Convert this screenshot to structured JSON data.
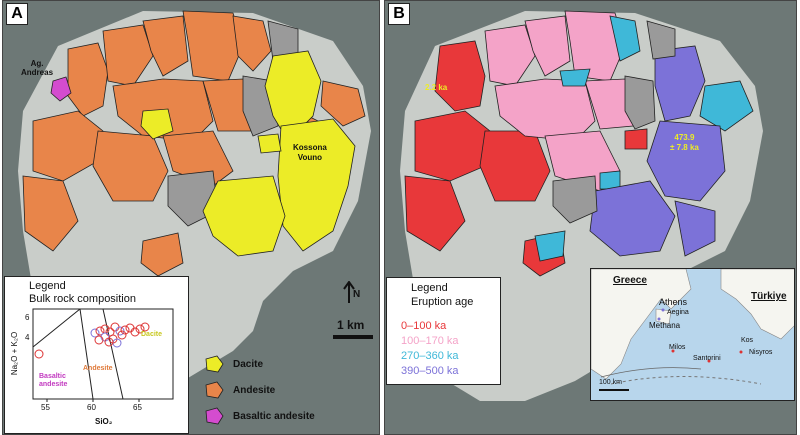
{
  "panel_a": {
    "letter": "A",
    "label_ag": "Ag.\nAndreas",
    "label_kossona": "Kossona\nVouno",
    "north_label": "N",
    "scale_label": "1 km",
    "legend": {
      "title": "Legend",
      "subtitle": "Bulk rock composition",
      "ylabel": "Na₂O + K₂O",
      "xlabel": "SiO₂",
      "xticks": [
        "55",
        "60",
        "65"
      ],
      "yticks": [
        "4",
        "6"
      ],
      "field_basaltic": "Basaltic\nandesite",
      "field_andesite": "Andesite",
      "field_dacite": "Dacite"
    },
    "key": [
      {
        "label": "Dacite",
        "color": "#ecec27"
      },
      {
        "label": "Andesite",
        "color": "#e8854a"
      },
      {
        "label": "Basaltic andesite",
        "color": "#d44ccf"
      }
    ]
  },
  "panel_b": {
    "letter": "B",
    "label_young": "2.2 ka",
    "label_old": "473.9\n± 7.8 ka",
    "legend": {
      "title": "Legend",
      "subtitle": "Eruption age",
      "items": [
        {
          "label": "0–100 ka",
          "color": "#e8383a"
        },
        {
          "label": "100–170 ka",
          "color": "#f4a3c8"
        },
        {
          "label": "270–360 ka",
          "color": "#3fb8d8"
        },
        {
          "label": "390–500 ka",
          "color": "#7c72d8"
        }
      ]
    },
    "inset": {
      "greece": "Greece",
      "turkiye": "Türkiye",
      "athens": "Athens",
      "aegina": "Aegina",
      "methana": "Methana",
      "milos": "Milos",
      "santorini": "Santorini",
      "kos": "Kos",
      "nisyros": "Nisyros",
      "scale": "100 km"
    }
  },
  "colors": {
    "dacite": "#ecec27",
    "andesite": "#e8854a",
    "basaltic": "#d44ccf",
    "age_0_100": "#e8383a",
    "age_100_170": "#f4a3c8",
    "age_270_360": "#3fb8d8",
    "age_390_500": "#7c72d8",
    "grey_unit": "#9a9a9a",
    "island": "#c9cdc9"
  }
}
